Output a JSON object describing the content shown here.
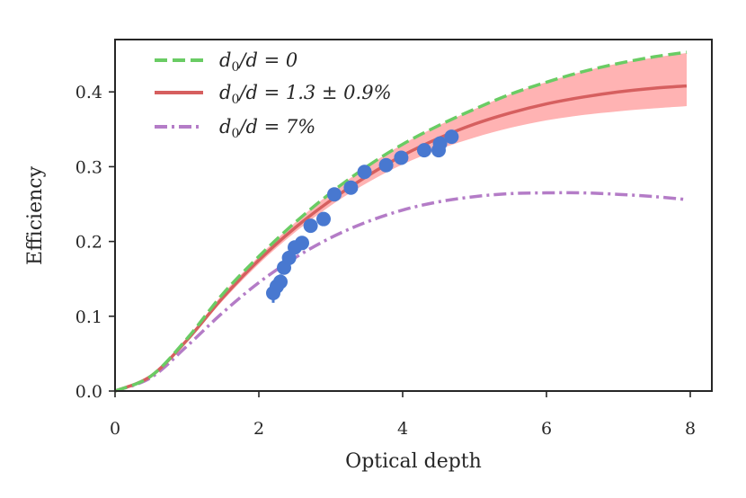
{
  "chart_data": {
    "type": "line",
    "xlabel": "Optical depth",
    "ylabel": "Efficiency",
    "xlim": [
      0,
      8.3
    ],
    "ylim": [
      0,
      0.47
    ],
    "xticks": [
      0,
      2,
      4,
      6,
      8
    ],
    "xtick_labels": [
      "0",
      "2",
      "4",
      "6",
      "8"
    ],
    "yticks": [
      0.0,
      0.1,
      0.2,
      0.3,
      0.4
    ],
    "ytick_labels": [
      "0.0",
      "0.1",
      "0.2",
      "0.3",
      "0.4"
    ],
    "grid": false,
    "legend_position": "top-left",
    "series": [
      {
        "name": "d₀/d = 0",
        "style": "dashed",
        "color": "#6acc64",
        "x": [
          0,
          0.5,
          1,
          1.5,
          2,
          2.5,
          3,
          3.5,
          4,
          4.5,
          5,
          5.5,
          6,
          6.5,
          7,
          7.5,
          7.95
        ],
        "y": [
          0,
          0.02,
          0.07,
          0.13,
          0.18,
          0.225,
          0.265,
          0.3,
          0.33,
          0.355,
          0.377,
          0.397,
          0.413,
          0.427,
          0.438,
          0.447,
          0.453
        ]
      },
      {
        "name": "d₀/d = 1.3 ± 0.9%",
        "style": "solid",
        "color": "#d65f5f",
        "x": [
          0,
          0.5,
          1,
          1.5,
          2,
          2.5,
          3,
          3.5,
          4,
          4.5,
          5,
          5.5,
          6,
          6.5,
          7,
          7.5,
          7.95
        ],
        "y": [
          0,
          0.02,
          0.068,
          0.125,
          0.175,
          0.218,
          0.255,
          0.287,
          0.315,
          0.338,
          0.357,
          0.372,
          0.384,
          0.393,
          0.4,
          0.405,
          0.408
        ],
        "band_low": [
          0,
          0.02,
          0.066,
          0.121,
          0.17,
          0.212,
          0.248,
          0.278,
          0.303,
          0.323,
          0.339,
          0.352,
          0.362,
          0.369,
          0.374,
          0.378,
          0.381
        ],
        "band_high": [
          0,
          0.02,
          0.07,
          0.13,
          0.18,
          0.225,
          0.265,
          0.3,
          0.33,
          0.355,
          0.377,
          0.397,
          0.413,
          0.427,
          0.438,
          0.446,
          0.452
        ]
      },
      {
        "name": "d₀/d = 7%",
        "style": "dashdot",
        "color": "#b47cc7",
        "x": [
          0,
          0.5,
          1,
          1.5,
          2,
          2.5,
          3,
          3.5,
          4,
          4.5,
          5,
          5.5,
          6,
          6.5,
          7,
          7.5,
          7.95
        ],
        "y": [
          0,
          0.018,
          0.06,
          0.105,
          0.145,
          0.178,
          0.205,
          0.226,
          0.242,
          0.253,
          0.26,
          0.264,
          0.265,
          0.265,
          0.263,
          0.26,
          0.256
        ]
      }
    ],
    "scatter": {
      "color": "#4878d0",
      "x": [
        2.2,
        2.25,
        2.3,
        2.35,
        2.42,
        2.5,
        2.6,
        2.72,
        2.9,
        3.05,
        3.28,
        3.47,
        3.77,
        3.98,
        4.3,
        4.5,
        4.52,
        4.68
      ],
      "y": [
        0.131,
        0.14,
        0.146,
        0.165,
        0.178,
        0.192,
        0.198,
        0.221,
        0.23,
        0.263,
        0.272,
        0.293,
        0.302,
        0.312,
        0.322,
        0.322,
        0.331,
        0.34
      ],
      "yerr": [
        0.013,
        0.01,
        0.01,
        0.009,
        0.008,
        0.008,
        0.008,
        0.008,
        0.008,
        0.009,
        0.009,
        0.008,
        0.008,
        0.008,
        0.008,
        0.008,
        0.008,
        0.008
      ]
    }
  },
  "legend": {
    "entries": [
      {
        "id": "zero",
        "base": "d",
        "sub": "0",
        "rest": "/d = 0"
      },
      {
        "id": "fit",
        "base": "d",
        "sub": "0",
        "rest": "/d = 1.3 ± 0.9%"
      },
      {
        "id": "seven",
        "base": "d",
        "sub": "0",
        "rest": "/d = 7%"
      }
    ]
  },
  "colors": {
    "band": "#ffb3b3",
    "axis": "#262626"
  }
}
